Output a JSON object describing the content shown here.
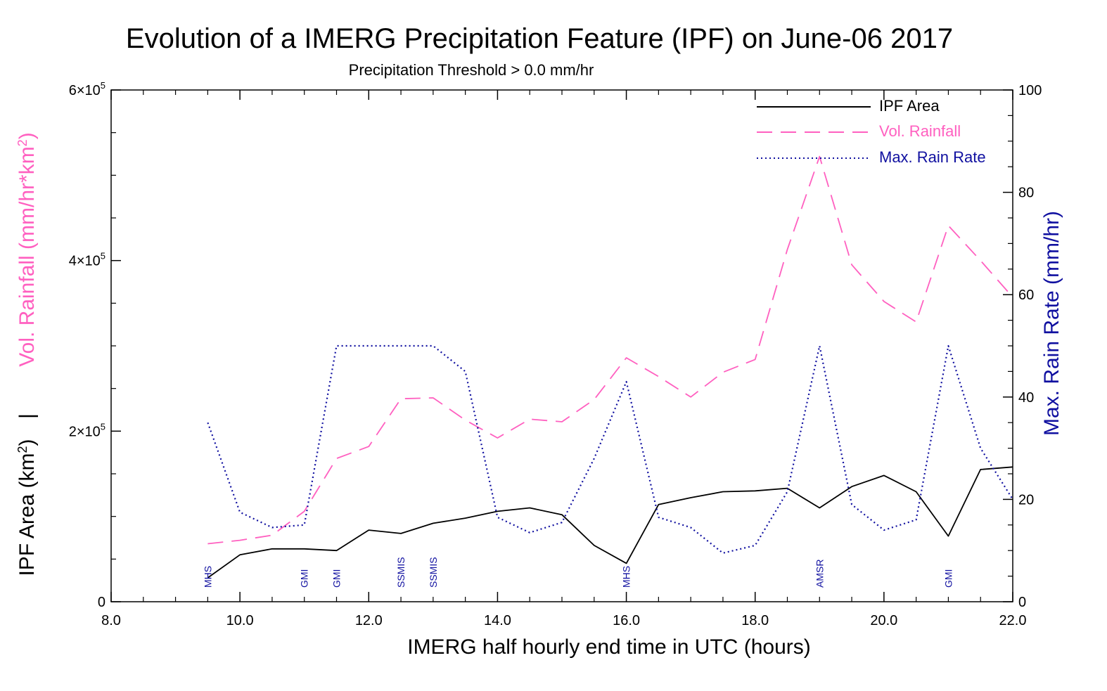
{
  "chart_data": {
    "type": "line",
    "title": "Evolution of a IMERG Precipitation Feature (IPF) on June-06 2017",
    "subtitle": "Precipitation Threshold > 0.0 mm/hr",
    "xlabel": "IMERG half hourly end time in UTC (hours)",
    "xlim": [
      8,
      22
    ],
    "x_ticks": [
      8,
      10,
      12,
      14,
      16,
      18,
      20,
      22
    ],
    "x_tick_labels": [
      "8.0",
      "10.0",
      "12.0",
      "14.0",
      "16.0",
      "18.0",
      "20.0",
      "22.0"
    ],
    "left_axis": {
      "label_vol": "Vol. Rainfall (mm/hr*km",
      "label_vol_sup": "2",
      "label_vol_end": ")",
      "label_sep": "|",
      "label_area": "IPF Area (km",
      "label_area_sup": "2",
      "label_area_end": ")",
      "ylim": [
        0,
        600000
      ],
      "ticks": [
        {
          "value": 0,
          "base": "0",
          "exp": ""
        },
        {
          "value": 200000,
          "base": "2×10",
          "exp": "5"
        },
        {
          "value": 400000,
          "base": "4×10",
          "exp": "5"
        },
        {
          "value": 600000,
          "base": "6×10",
          "exp": "5"
        }
      ]
    },
    "right_axis": {
      "label": "Max. Rain Rate (mm/hr)",
      "ylim": [
        0,
        100
      ],
      "ticks": [
        0,
        20,
        40,
        60,
        80,
        100
      ],
      "tick_labels": [
        "0",
        "20",
        "40",
        "60",
        "80",
        "100"
      ]
    },
    "x": [
      9.5,
      10.0,
      10.5,
      11.0,
      11.5,
      12.0,
      12.5,
      13.0,
      13.5,
      14.0,
      14.5,
      15.0,
      15.5,
      16.0,
      16.5,
      17.0,
      17.5,
      18.0,
      18.5,
      19.0,
      19.5,
      20.0,
      20.5,
      21.0,
      21.5,
      22.0
    ],
    "series": [
      {
        "name": "IPF Area",
        "axis": "left",
        "color": "#000000",
        "style": "solid",
        "values": [
          28000,
          55000,
          62000,
          62000,
          60000,
          84000,
          80000,
          92000,
          98000,
          106000,
          110000,
          102000,
          66000,
          45000,
          114000,
          122000,
          129000,
          130000,
          133000,
          110000,
          135000,
          148000,
          129000,
          77000,
          155000,
          158000
        ]
      },
      {
        "name": "Vol. Rainfall",
        "axis": "left",
        "color": "#ff60c0",
        "style": "dashed",
        "values": [
          68000,
          72000,
          78000,
          106000,
          168000,
          182000,
          238000,
          239000,
          213000,
          192000,
          214000,
          211000,
          237000,
          286000,
          264000,
          240000,
          269000,
          284000,
          413000,
          522000,
          395000,
          352000,
          328000,
          441000,
          400000,
          357000
        ]
      },
      {
        "name": "Max. Rain Rate",
        "axis": "right",
        "color": "#1010a0",
        "style": "dotted",
        "values": [
          35,
          17.5,
          14.5,
          15,
          50,
          50,
          50,
          50,
          45,
          16.5,
          13.5,
          15.5,
          28,
          43,
          16.5,
          14.5,
          9.5,
          11,
          21.5,
          50,
          19,
          14,
          16,
          50,
          30,
          20
        ]
      }
    ],
    "sensor_labels": [
      {
        "x": 9.5,
        "label": "MHS"
      },
      {
        "x": 11.0,
        "label": "GMI"
      },
      {
        "x": 11.5,
        "label": "GMI"
      },
      {
        "x": 12.5,
        "label": "SSMIS"
      },
      {
        "x": 13.0,
        "label": "SSMIS"
      },
      {
        "x": 16.0,
        "label": "MHS"
      },
      {
        "x": 19.0,
        "label": "AMSR"
      },
      {
        "x": 21.0,
        "label": "GMI"
      }
    ],
    "colors": {
      "vol_label": "#ff60c0",
      "rate_label": "#1010a0"
    },
    "legend_position": "top-right"
  }
}
